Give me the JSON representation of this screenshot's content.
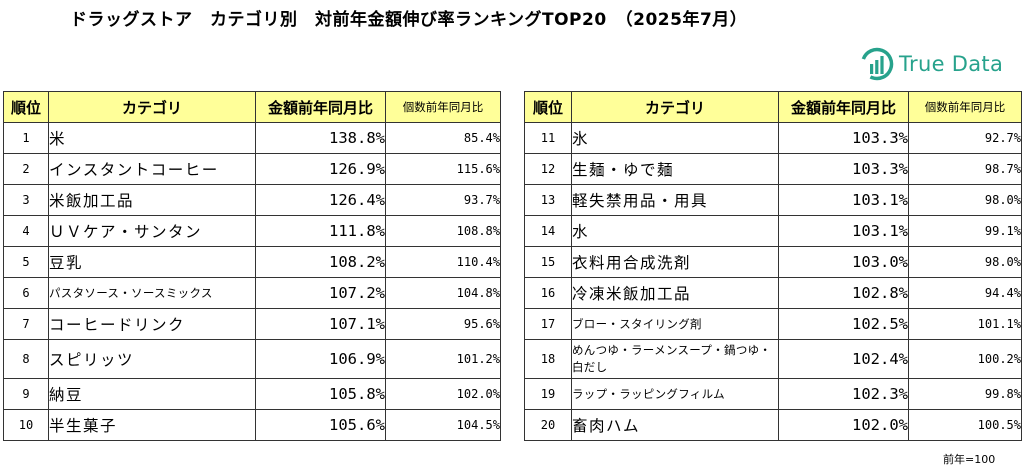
{
  "title": "ドラッグストア　カテゴリ別　対前年金額伸び率ランキングTOP20　（2025年7月）",
  "logo": {
    "text": "True Data"
  },
  "headers": {
    "rank": "順位",
    "category": "カテゴリ",
    "amount_yoy": "金額前年同月比",
    "count_yoy": "個数前年同月比"
  },
  "left_rows": [
    {
      "rank": "1",
      "category": "米",
      "amount": "138.8%",
      "count": "85.4%"
    },
    {
      "rank": "2",
      "category": "インスタントコーヒー",
      "amount": "126.9%",
      "count": "115.6%"
    },
    {
      "rank": "3",
      "category": "米飯加工品",
      "amount": "126.4%",
      "count": "93.7%"
    },
    {
      "rank": "4",
      "category": "ＵＶケア・サンタン",
      "amount": "111.8%",
      "count": "108.8%"
    },
    {
      "rank": "5",
      "category": "豆乳",
      "amount": "108.2%",
      "count": "110.4%"
    },
    {
      "rank": "6",
      "category": "パスタソース・ソースミックス",
      "amount": "107.2%",
      "count": "104.8%"
    },
    {
      "rank": "7",
      "category": "コーヒードリンク",
      "amount": "107.1%",
      "count": "95.6%"
    },
    {
      "rank": "8",
      "category": "スピリッツ",
      "amount": "106.9%",
      "count": "101.2%"
    },
    {
      "rank": "9",
      "category": "納豆",
      "amount": "105.8%",
      "count": "102.0%"
    },
    {
      "rank": "10",
      "category": "半生菓子",
      "amount": "105.6%",
      "count": "104.5%"
    }
  ],
  "right_rows": [
    {
      "rank": "11",
      "category": "氷",
      "amount": "103.3%",
      "count": "92.7%"
    },
    {
      "rank": "12",
      "category": "生麺・ゆで麺",
      "amount": "103.3%",
      "count": "98.7%"
    },
    {
      "rank": "13",
      "category": "軽失禁用品・用具",
      "amount": "103.1%",
      "count": "98.0%"
    },
    {
      "rank": "14",
      "category": "水",
      "amount": "103.1%",
      "count": "99.1%"
    },
    {
      "rank": "15",
      "category": "衣料用合成洗剤",
      "amount": "103.0%",
      "count": "98.0%"
    },
    {
      "rank": "16",
      "category": "冷凍米飯加工品",
      "amount": "102.8%",
      "count": "94.4%"
    },
    {
      "rank": "17",
      "category": "ブロー・スタイリング剤",
      "amount": "102.5%",
      "count": "101.1%"
    },
    {
      "rank": "18",
      "category": "めんつゆ・ラーメンスープ・鍋つゆ・白だし",
      "amount": "102.4%",
      "count": "100.2%"
    },
    {
      "rank": "19",
      "category": "ラップ・ラッピングフィルム",
      "amount": "102.3%",
      "count": "99.8%"
    },
    {
      "rank": "20",
      "category": "畜肉ハム",
      "amount": "102.0%",
      "count": "100.5%"
    }
  ],
  "footnote": "前年=100",
  "colors": {
    "header_bg": "#ffff99",
    "logo": "#27a28c"
  }
}
